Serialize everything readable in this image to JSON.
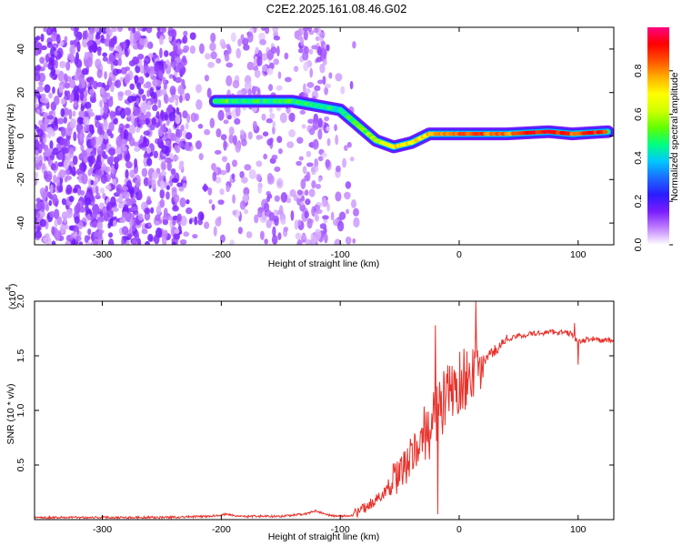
{
  "title": "C2E2.2025.161.08.46.G02",
  "chart_data": [
    {
      "type": "heatmap",
      "xlabel": "Height of straight line (km)",
      "ylabel": "Frequency (Hz)",
      "xlim": [
        -357,
        130
      ],
      "ylim": [
        -50,
        50
      ],
      "x_ticks": [
        -300,
        -200,
        -100,
        0,
        100
      ],
      "y_ticks": [
        -40,
        -20,
        0,
        20,
        40
      ],
      "colorbar": {
        "label": "Normalized spectral amplitude",
        "ticks": [
          0.0,
          0.2,
          0.4,
          0.6,
          0.8
        ],
        "tick_labels": [
          "0.0",
          "0.2",
          "0.4",
          "0.6",
          "0.8"
        ],
        "range": [
          0,
          1
        ],
        "colormap": [
          "#ffffff",
          "#c080ff",
          "#7a1cff",
          "#2a1cff",
          "#1c6bff",
          "#00c8ff",
          "#00ff80",
          "#60ff00",
          "#d0ff00",
          "#ffff00",
          "#ffb000",
          "#ff5000",
          "#ff0000",
          "#ff0080"
        ]
      },
      "ridge": [
        {
          "x": -205,
          "f": 16,
          "a": 0.45
        },
        {
          "x": -195,
          "f": 16,
          "a": 0.5
        },
        {
          "x": -160,
          "f": 16,
          "a": 0.45
        },
        {
          "x": -140,
          "f": 16,
          "a": 0.5
        },
        {
          "x": -120,
          "f": 14,
          "a": 0.45
        },
        {
          "x": -100,
          "f": 12,
          "a": 0.45
        },
        {
          "x": -85,
          "f": 5,
          "a": 0.5
        },
        {
          "x": -70,
          "f": -2,
          "a": 0.6
        },
        {
          "x": -55,
          "f": -5,
          "a": 0.7
        },
        {
          "x": -40,
          "f": -3,
          "a": 0.7
        },
        {
          "x": -25,
          "f": 1,
          "a": 0.75
        },
        {
          "x": -10,
          "f": 1,
          "a": 0.8
        },
        {
          "x": 10,
          "f": 1,
          "a": 0.85
        },
        {
          "x": 40,
          "f": 1,
          "a": 0.8
        },
        {
          "x": 75,
          "f": 2,
          "a": 0.95
        },
        {
          "x": 95,
          "f": 1,
          "a": 0.85
        },
        {
          "x": 125,
          "f": 2,
          "a": 0.9
        }
      ],
      "noise_extent_km": [
        -357,
        -85
      ]
    },
    {
      "type": "line",
      "xlabel": "Height of straight line (km)",
      "ylabel": "SNR (10 * v/v)",
      "multiplier_label": "(x10",
      "multiplier_exp": "4",
      "multiplier_close": ")",
      "xlim": [
        -357,
        130
      ],
      "ylim": [
        0,
        2.0
      ],
      "x_ticks": [
        -300,
        -200,
        -100,
        0,
        100
      ],
      "y_ticks": [
        0.5,
        1.0,
        1.5,
        2.0
      ],
      "y_tick_labels": [
        "0.5",
        "1.0",
        "1.5",
        "2.0"
      ],
      "color": "#e8302a",
      "series": [
        {
          "x": [
            -357,
            -300,
            -250,
            -210,
            -195,
            -185,
            -170,
            -150,
            -130,
            -120,
            -110,
            -100,
            -90,
            -80,
            -70,
            -60,
            -50,
            -40,
            -30,
            -20,
            -10,
            0,
            10,
            15,
            20,
            30,
            40,
            50,
            60,
            70,
            80,
            90,
            95,
            100,
            110,
            120,
            130
          ],
          "y": [
            0.02,
            0.02,
            0.02,
            0.03,
            0.05,
            0.03,
            0.03,
            0.03,
            0.05,
            0.08,
            0.04,
            0.03,
            0.04,
            0.1,
            0.18,
            0.28,
            0.4,
            0.58,
            0.75,
            0.95,
            1.12,
            1.25,
            1.35,
            1.38,
            1.45,
            1.55,
            1.65,
            1.68,
            1.7,
            1.71,
            1.72,
            1.71,
            1.7,
            1.62,
            1.66,
            1.64,
            1.64
          ]
        }
      ],
      "spikes": [
        {
          "x": -20,
          "y": 1.78
        },
        {
          "x": -18,
          "y": 0.05
        },
        {
          "x": 14,
          "y": 2.0
        },
        {
          "x": 97,
          "y": 1.8
        },
        {
          "x": 100,
          "y": 1.42
        }
      ]
    }
  ]
}
